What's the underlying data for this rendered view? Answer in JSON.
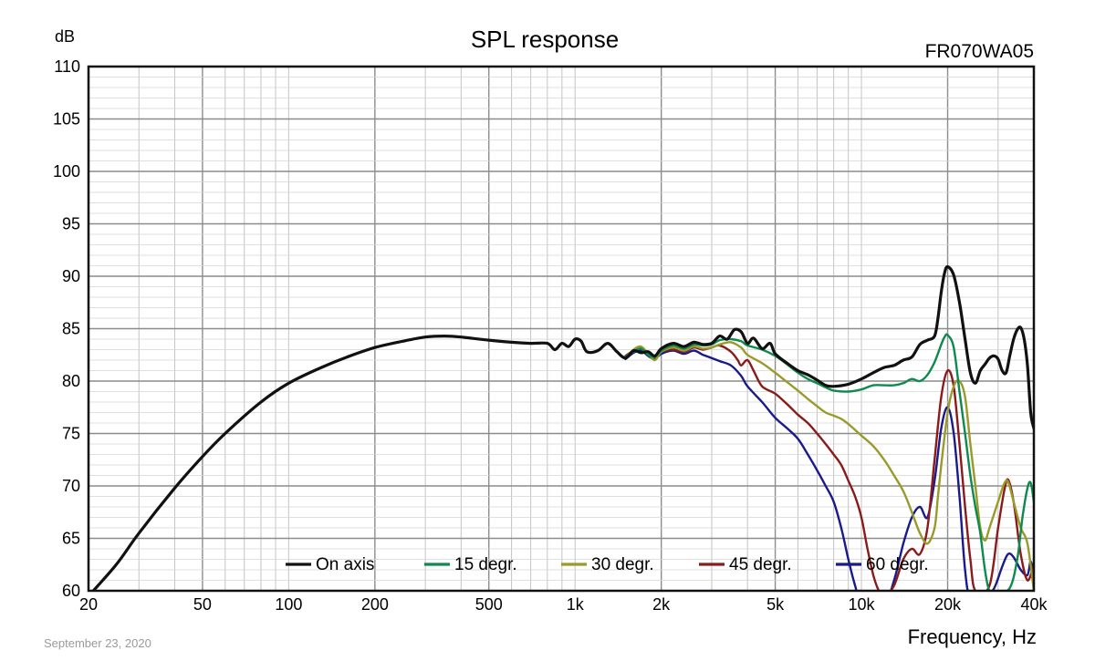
{
  "chart_data": {
    "type": "line",
    "title": "SPL response",
    "model": "FR070WA05",
    "xlabel": "Frequency, Hz",
    "ylabel": "dB",
    "x_scale": "log",
    "xlim": [
      20,
      40000
    ],
    "ylim": [
      60,
      110
    ],
    "grid": true,
    "legend_position": "bottom",
    "date_note": "September 23, 2020",
    "x_ticks": [
      {
        "v": 20,
        "label": "20"
      },
      {
        "v": 50,
        "label": "50"
      },
      {
        "v": 100,
        "label": "100"
      },
      {
        "v": 200,
        "label": "200"
      },
      {
        "v": 500,
        "label": "500"
      },
      {
        "v": 1000,
        "label": "1k"
      },
      {
        "v": 2000,
        "label": "2k"
      },
      {
        "v": 5000,
        "label": "5k"
      },
      {
        "v": 10000,
        "label": "10k"
      },
      {
        "v": 20000,
        "label": "20k"
      },
      {
        "v": 40000,
        "label": "40k"
      }
    ],
    "y_ticks": [
      60,
      65,
      70,
      75,
      80,
      85,
      90,
      95,
      100,
      105,
      110
    ],
    "series": [
      {
        "name": "On axis",
        "color": "#111111",
        "points": [
          [
            20,
            59.5
          ],
          [
            25,
            62.5
          ],
          [
            30,
            65.5
          ],
          [
            40,
            69.8
          ],
          [
            50,
            72.8
          ],
          [
            60,
            75.0
          ],
          [
            80,
            78.0
          ],
          [
            100,
            79.8
          ],
          [
            130,
            81.3
          ],
          [
            160,
            82.3
          ],
          [
            200,
            83.2
          ],
          [
            250,
            83.8
          ],
          [
            300,
            84.2
          ],
          [
            350,
            84.3
          ],
          [
            400,
            84.2
          ],
          [
            500,
            83.9
          ],
          [
            600,
            83.7
          ],
          [
            700,
            83.6
          ],
          [
            800,
            83.6
          ],
          [
            850,
            83.0
          ],
          [
            900,
            83.6
          ],
          [
            950,
            83.3
          ],
          [
            1000,
            84.0
          ],
          [
            1050,
            83.8
          ],
          [
            1100,
            82.8
          ],
          [
            1200,
            82.9
          ],
          [
            1300,
            83.6
          ],
          [
            1400,
            82.8
          ],
          [
            1500,
            82.2
          ],
          [
            1600,
            82.9
          ],
          [
            1700,
            82.7
          ],
          [
            1800,
            82.8
          ],
          [
            1900,
            82.4
          ],
          [
            2000,
            83.1
          ],
          [
            2200,
            83.6
          ],
          [
            2400,
            83.3
          ],
          [
            2600,
            83.7
          ],
          [
            2800,
            83.5
          ],
          [
            3000,
            83.6
          ],
          [
            3200,
            84.3
          ],
          [
            3400,
            84.0
          ],
          [
            3600,
            84.9
          ],
          [
            3800,
            84.7
          ],
          [
            4000,
            83.6
          ],
          [
            4200,
            84.1
          ],
          [
            4500,
            83.1
          ],
          [
            4800,
            83.6
          ],
          [
            5000,
            82.6
          ],
          [
            5500,
            81.7
          ],
          [
            6000,
            81.0
          ],
          [
            6500,
            80.6
          ],
          [
            7000,
            80.1
          ],
          [
            7500,
            79.6
          ],
          [
            8000,
            79.5
          ],
          [
            9000,
            79.7
          ],
          [
            10000,
            80.2
          ],
          [
            11000,
            80.8
          ],
          [
            12000,
            81.3
          ],
          [
            13000,
            81.5
          ],
          [
            14000,
            82.0
          ],
          [
            15000,
            82.3
          ],
          [
            16000,
            83.5
          ],
          [
            17000,
            83.9
          ],
          [
            18000,
            84.3
          ],
          [
            18500,
            86.0
          ],
          [
            19000,
            88.5
          ],
          [
            19500,
            90.3
          ],
          [
            20000,
            90.9
          ],
          [
            21000,
            90.1
          ],
          [
            22000,
            87.5
          ],
          [
            23000,
            84.0
          ],
          [
            24000,
            80.8
          ],
          [
            25000,
            79.8
          ],
          [
            26000,
            81.0
          ],
          [
            27000,
            81.6
          ],
          [
            28000,
            82.2
          ],
          [
            29000,
            82.4
          ],
          [
            30000,
            82.1
          ],
          [
            31000,
            81.0
          ],
          [
            32000,
            80.8
          ],
          [
            33000,
            82.5
          ],
          [
            34000,
            84.0
          ],
          [
            35000,
            84.9
          ],
          [
            36000,
            85.1
          ],
          [
            37000,
            84.0
          ],
          [
            38000,
            81.5
          ],
          [
            39000,
            77.0
          ],
          [
            40000,
            75.5
          ]
        ]
      },
      {
        "name": "15 degr.",
        "color": "#0f8a4e",
        "points": [
          [
            1500,
            82.3
          ],
          [
            1600,
            82.8
          ],
          [
            1700,
            83.1
          ],
          [
            1800,
            82.5
          ],
          [
            1900,
            82.3
          ],
          [
            2000,
            82.9
          ],
          [
            2200,
            83.4
          ],
          [
            2400,
            83.1
          ],
          [
            2600,
            83.5
          ],
          [
            2800,
            83.4
          ],
          [
            3000,
            83.5
          ],
          [
            3200,
            83.9
          ],
          [
            3500,
            84.0
          ],
          [
            3800,
            83.8
          ],
          [
            4000,
            83.4
          ],
          [
            4500,
            83.0
          ],
          [
            5000,
            82.4
          ],
          [
            5500,
            81.6
          ],
          [
            6000,
            80.8
          ],
          [
            6500,
            80.2
          ],
          [
            7000,
            79.8
          ],
          [
            7500,
            79.4
          ],
          [
            8000,
            79.1
          ],
          [
            9000,
            79.0
          ],
          [
            10000,
            79.2
          ],
          [
            11000,
            79.6
          ],
          [
            12000,
            79.6
          ],
          [
            13000,
            79.6
          ],
          [
            14000,
            79.8
          ],
          [
            15000,
            80.2
          ],
          [
            16000,
            80.0
          ],
          [
            17000,
            80.6
          ],
          [
            18000,
            81.8
          ],
          [
            19000,
            83.5
          ],
          [
            19500,
            84.2
          ],
          [
            20000,
            84.4
          ],
          [
            21000,
            83.2
          ],
          [
            22000,
            79.0
          ],
          [
            23000,
            75.0
          ],
          [
            24000,
            71.0
          ],
          [
            25000,
            68.0
          ],
          [
            26000,
            65.5
          ],
          [
            27000,
            62.0
          ],
          [
            28000,
            60.0
          ],
          [
            30000,
            59.8
          ],
          [
            33000,
            60.3
          ],
          [
            35000,
            63.0
          ],
          [
            36500,
            67.0
          ],
          [
            38000,
            69.8
          ],
          [
            39000,
            70.3
          ],
          [
            40000,
            68.5
          ]
        ]
      },
      {
        "name": "30 degr.",
        "color": "#9a9a2a",
        "points": [
          [
            1500,
            82.2
          ],
          [
            1600,
            83.0
          ],
          [
            1700,
            83.3
          ],
          [
            1800,
            82.6
          ],
          [
            1900,
            82.0
          ],
          [
            2000,
            82.8
          ],
          [
            2200,
            83.2
          ],
          [
            2400,
            82.9
          ],
          [
            2600,
            83.3
          ],
          [
            2800,
            83.1
          ],
          [
            3000,
            83.2
          ],
          [
            3200,
            83.5
          ],
          [
            3500,
            83.7
          ],
          [
            3800,
            83.2
          ],
          [
            4000,
            82.5
          ],
          [
            4500,
            81.7
          ],
          [
            5000,
            80.8
          ],
          [
            5500,
            79.9
          ],
          [
            6000,
            79.1
          ],
          [
            6500,
            78.3
          ],
          [
            7000,
            77.6
          ],
          [
            7500,
            77.0
          ],
          [
            8000,
            76.7
          ],
          [
            8500,
            76.4
          ],
          [
            9000,
            75.9
          ],
          [
            10000,
            74.8
          ],
          [
            11000,
            73.8
          ],
          [
            12000,
            72.5
          ],
          [
            13000,
            71.0
          ],
          [
            14000,
            69.5
          ],
          [
            15000,
            67.5
          ],
          [
            16000,
            65.5
          ],
          [
            17000,
            64.5
          ],
          [
            18000,
            66.0
          ],
          [
            18500,
            69.0
          ],
          [
            19000,
            72.0
          ],
          [
            20000,
            77.0
          ],
          [
            21000,
            79.5
          ],
          [
            22000,
            80.0
          ],
          [
            23000,
            78.5
          ],
          [
            24000,
            74.0
          ],
          [
            25000,
            70.0
          ],
          [
            26000,
            66.0
          ],
          [
            27000,
            64.8
          ],
          [
            28000,
            66.0
          ],
          [
            30000,
            68.5
          ],
          [
            31500,
            70.2
          ],
          [
            32500,
            70.4
          ],
          [
            34000,
            68.5
          ],
          [
            36000,
            66.0
          ],
          [
            38000,
            64.5
          ],
          [
            40000,
            60.0
          ]
        ]
      },
      {
        "name": "45 degr.",
        "color": "#8b1a1a",
        "points": [
          [
            1500,
            82.4
          ],
          [
            1600,
            82.9
          ],
          [
            1700,
            83.1
          ],
          [
            1800,
            82.6
          ],
          [
            1900,
            82.3
          ],
          [
            2000,
            82.8
          ],
          [
            2200,
            83.0
          ],
          [
            2400,
            82.8
          ],
          [
            2600,
            83.2
          ],
          [
            2800,
            83.0
          ],
          [
            3000,
            83.2
          ],
          [
            3200,
            83.4
          ],
          [
            3500,
            82.8
          ],
          [
            3700,
            82.0
          ],
          [
            3800,
            81.5
          ],
          [
            4000,
            82.0
          ],
          [
            4200,
            81.0
          ],
          [
            4500,
            79.5
          ],
          [
            5000,
            78.8
          ],
          [
            5500,
            77.8
          ],
          [
            6000,
            76.8
          ],
          [
            6500,
            76.0
          ],
          [
            7000,
            75.0
          ],
          [
            7500,
            74.0
          ],
          [
            8000,
            73.0
          ],
          [
            8500,
            72.0
          ],
          [
            9000,
            70.5
          ],
          [
            9500,
            69.0
          ],
          [
            10000,
            67.0
          ],
          [
            10500,
            64.0
          ],
          [
            11000,
            61.5
          ],
          [
            11500,
            60.0
          ],
          [
            12000,
            59.5
          ],
          [
            13000,
            60.5
          ],
          [
            14000,
            63.0
          ],
          [
            15000,
            64.0
          ],
          [
            16000,
            63.5
          ],
          [
            17000,
            66.0
          ],
          [
            18000,
            72.5
          ],
          [
            19000,
            78.5
          ],
          [
            20000,
            81.0
          ],
          [
            21000,
            79.5
          ],
          [
            22000,
            74.0
          ],
          [
            23000,
            68.0
          ],
          [
            24000,
            63.0
          ],
          [
            25000,
            60.0
          ],
          [
            28000,
            60.5
          ],
          [
            30000,
            66.0
          ],
          [
            31500,
            69.5
          ],
          [
            32500,
            70.6
          ],
          [
            34000,
            68.5
          ],
          [
            36000,
            63.5
          ],
          [
            38000,
            61.0
          ],
          [
            40000,
            62.5
          ]
        ]
      },
      {
        "name": "60 degr.",
        "color": "#1a1a8c",
        "points": [
          [
            1500,
            82.1
          ],
          [
            1600,
            82.7
          ],
          [
            1700,
            82.9
          ],
          [
            1800,
            82.4
          ],
          [
            1900,
            82.1
          ],
          [
            2000,
            82.6
          ],
          [
            2200,
            82.9
          ],
          [
            2400,
            82.6
          ],
          [
            2600,
            82.9
          ],
          [
            2800,
            82.5
          ],
          [
            3000,
            82.2
          ],
          [
            3200,
            81.9
          ],
          [
            3500,
            81.5
          ],
          [
            3800,
            80.5
          ],
          [
            4000,
            79.5
          ],
          [
            4500,
            78.0
          ],
          [
            5000,
            76.5
          ],
          [
            5500,
            75.5
          ],
          [
            6000,
            74.5
          ],
          [
            6500,
            73.0
          ],
          [
            7000,
            71.5
          ],
          [
            7500,
            70.0
          ],
          [
            8000,
            68.5
          ],
          [
            8500,
            66.0
          ],
          [
            9000,
            63.0
          ],
          [
            9500,
            60.5
          ],
          [
            10000,
            59.0
          ],
          [
            12000,
            58.8
          ],
          [
            13000,
            61.0
          ],
          [
            14000,
            64.5
          ],
          [
            15000,
            67.0
          ],
          [
            16000,
            68.0
          ],
          [
            17000,
            67.0
          ],
          [
            18000,
            70.5
          ],
          [
            19000,
            75.5
          ],
          [
            20000,
            77.5
          ],
          [
            21000,
            75.0
          ],
          [
            22000,
            69.0
          ],
          [
            23000,
            62.0
          ],
          [
            24000,
            59.5
          ],
          [
            27000,
            59.6
          ],
          [
            29000,
            60.2
          ],
          [
            31000,
            62.3
          ],
          [
            32500,
            63.5
          ],
          [
            34000,
            63.2
          ],
          [
            36000,
            62.0
          ],
          [
            38000,
            61.5
          ],
          [
            39000,
            62.8
          ],
          [
            40000,
            61.5
          ]
        ]
      }
    ]
  }
}
